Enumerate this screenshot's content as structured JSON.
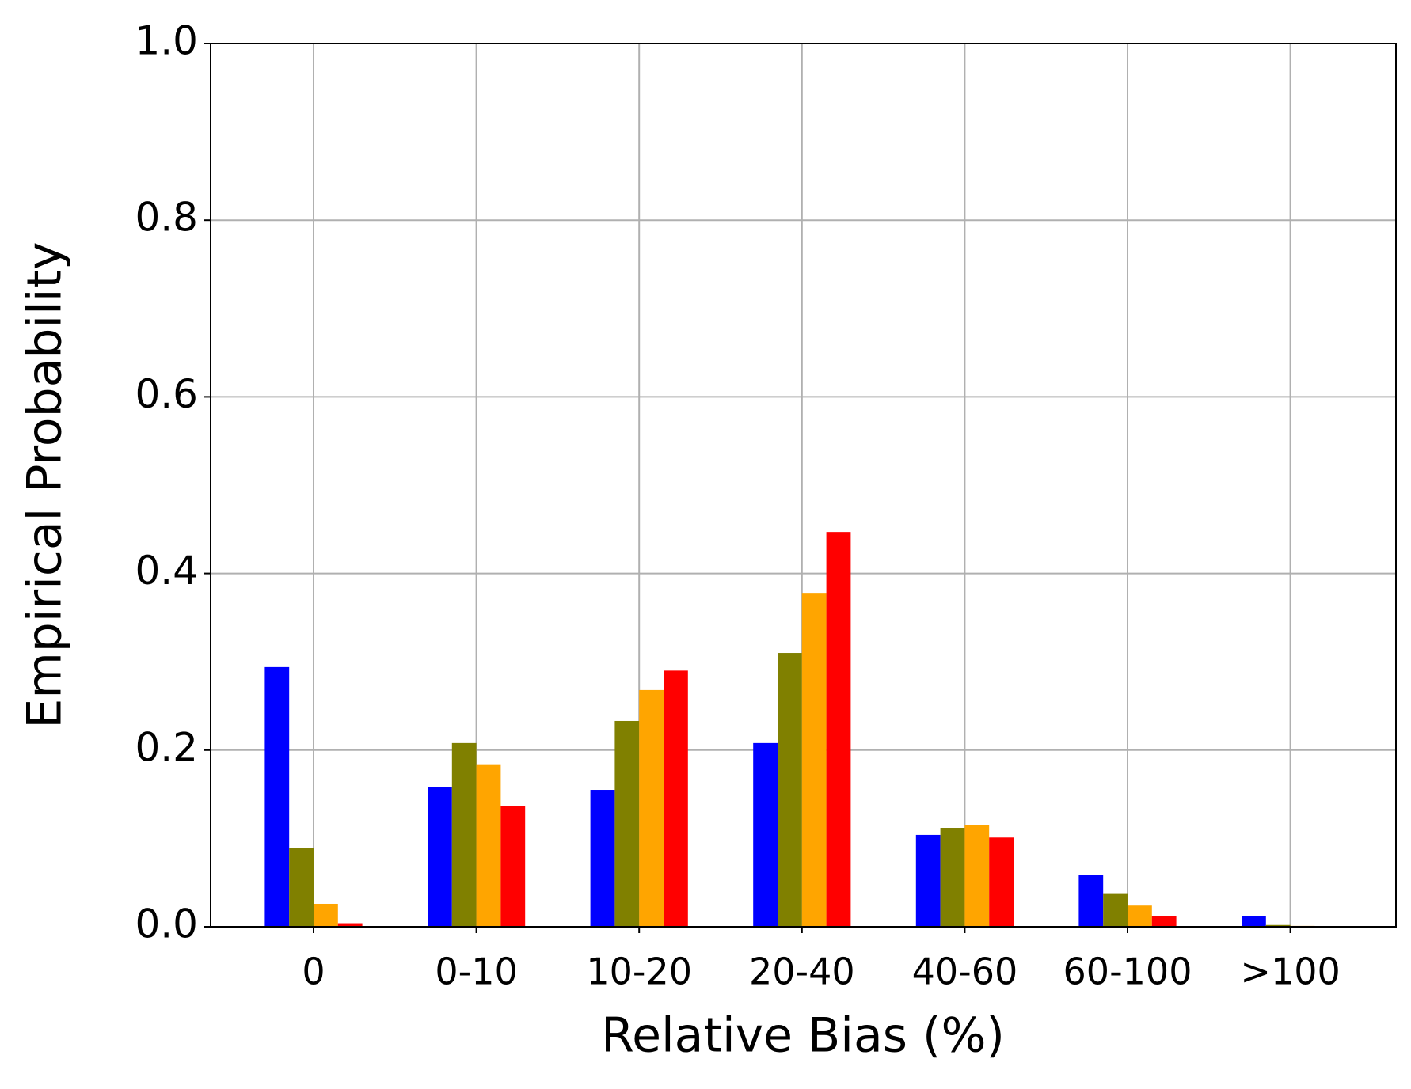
{
  "chart_data": {
    "type": "bar",
    "xlabel": "Relative Bias (%)",
    "ylabel": "Empirical Probability",
    "categories": [
      "0",
      "0-10",
      "10-20",
      "20-40",
      "40-60",
      "60-100",
      ">100"
    ],
    "series": [
      {
        "color": "#0000ff",
        "values": [
          0.294,
          0.158,
          0.155,
          0.208,
          0.104,
          0.059,
          0.012
        ]
      },
      {
        "color": "#808000",
        "values": [
          0.089,
          0.208,
          0.233,
          0.31,
          0.112,
          0.038,
          0.002
        ]
      },
      {
        "color": "#ffa500",
        "values": [
          0.026,
          0.184,
          0.268,
          0.378,
          0.115,
          0.024,
          0.001
        ]
      },
      {
        "color": "#ff0000",
        "values": [
          0.004,
          0.137,
          0.29,
          0.447,
          0.101,
          0.012,
          0
        ]
      }
    ],
    "ylim": [
      0,
      1
    ],
    "yticks": [
      {
        "value": 0,
        "label": "0.0"
      },
      0.2,
      0.4,
      0.6,
      0.8,
      {
        "value": 1,
        "label": "1.0"
      }
    ],
    "grid": true
  }
}
